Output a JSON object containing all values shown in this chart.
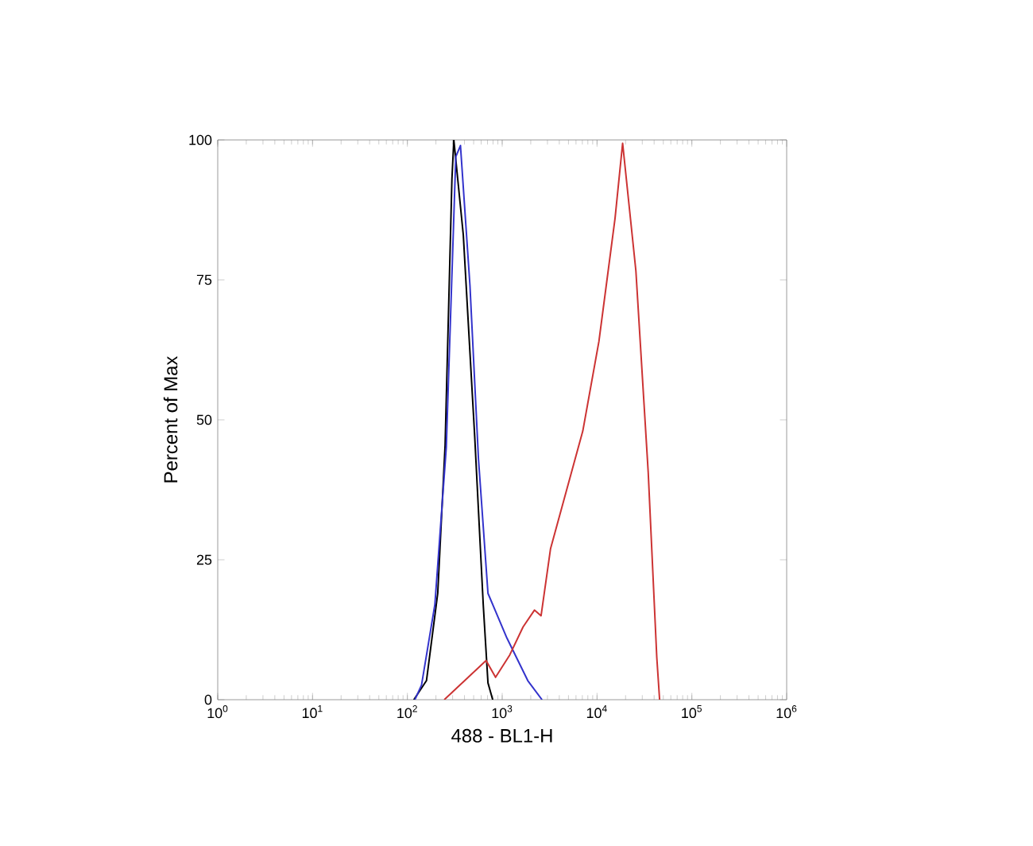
{
  "chart_data": {
    "type": "line",
    "xlabel": "488 - BL1-H",
    "ylabel": "Percent of Max",
    "log": "x",
    "grid": false,
    "marker": "none",
    "line_style": "solid",
    "xlim": [
      1,
      1000000
    ],
    "ylim": [
      0,
      100
    ],
    "xticks": [
      {
        "value": 1,
        "label": "10$^{0}$"
      },
      {
        "value": 10,
        "label": "10$^{1}$"
      },
      {
        "value": 100,
        "label": "10$^{2}$"
      },
      {
        "value": 1000,
        "label": "10$^{3}$"
      },
      {
        "value": 10000,
        "label": "10$^{4}$"
      },
      {
        "value": 100000,
        "label": "10$^{5}$"
      },
      {
        "value": 1000000,
        "label": "10$^{6}$"
      }
    ],
    "yticks": [
      0,
      25,
      50,
      75,
      100
    ],
    "series": [
      {
        "color": "#000000",
        "x": [
          117,
          159,
          209,
          250,
          295,
          309,
          389,
          513,
          631,
          708,
          794
        ],
        "values": [
          0,
          3.4,
          19,
          45.5,
          93,
          100,
          83,
          47,
          17,
          3,
          0
        ]
      },
      {
        "color": "#3333cc",
        "x": [
          120,
          141,
          195,
          257,
          324,
          363,
          457,
          562,
          708,
          1122,
          1862,
          2630
        ],
        "values": [
          0,
          2.6,
          17,
          45,
          97,
          99,
          74,
          43,
          19,
          11,
          3.4,
          0
        ]
      },
      {
        "color": "#cc3333",
        "x": [
          245,
          676,
          851,
          1202,
          1660,
          2188,
          2570,
          3236,
          7079,
          10470,
          15490,
          18620,
          25700,
          34670,
          42660,
          45710
        ],
        "values": [
          0,
          7,
          4,
          8,
          13,
          16,
          15,
          27,
          48,
          64,
          86,
          99.4,
          76.6,
          40.6,
          7.6,
          0
        ]
      }
    ]
  }
}
